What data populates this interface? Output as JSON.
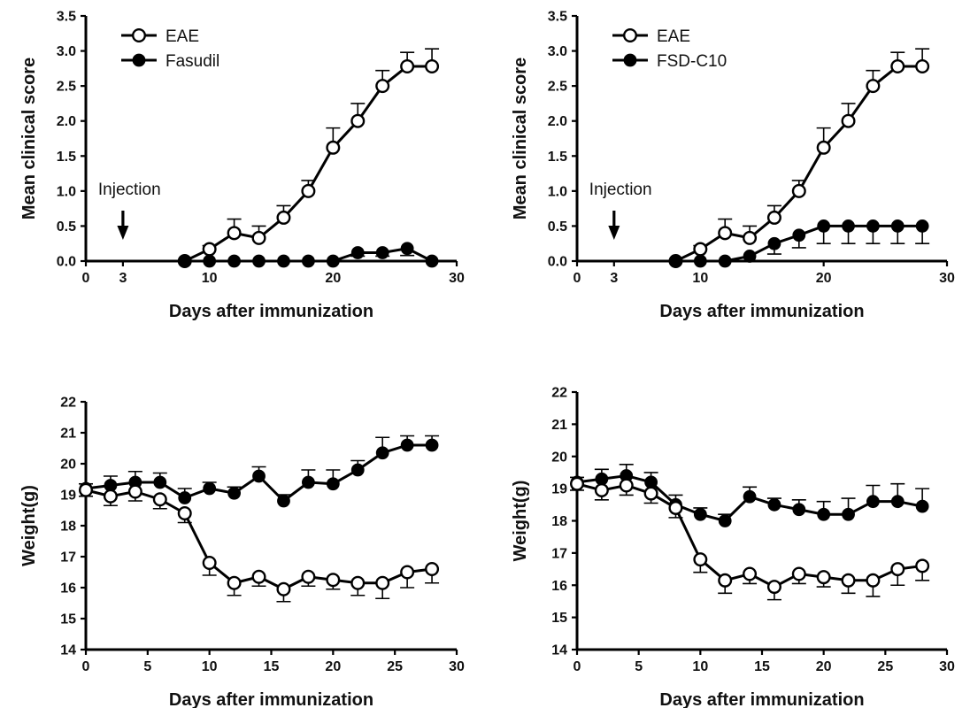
{
  "chart_data": [
    {
      "id": "top-left",
      "type": "line",
      "xlabel": "Days after immunization",
      "ylabel": "Mean clinical score",
      "xlim": [
        0,
        30
      ],
      "ylim": [
        0,
        3.5
      ],
      "xticks": [
        0,
        3,
        10,
        20,
        30
      ],
      "yticks": [
        "0.0",
        "0.5",
        "1.0",
        "1.5",
        "2.0",
        "2.5",
        "3.0",
        "3.5"
      ],
      "legend_position": "top-left",
      "annotation": {
        "text": "Injection",
        "x": 3
      },
      "series": [
        {
          "name": "EAE",
          "marker": "open-circle",
          "x": [
            8,
            10,
            12,
            14,
            16,
            18,
            20,
            22,
            24,
            26,
            28
          ],
          "values": [
            0,
            0.17,
            0.4,
            0.33,
            0.62,
            1.0,
            1.62,
            2.0,
            2.5,
            2.78,
            2.78
          ],
          "errors": [
            0,
            0.05,
            0.2,
            0.17,
            0.17,
            0.15,
            0.28,
            0.25,
            0.22,
            0.2,
            0.25
          ],
          "error_dir": "up"
        },
        {
          "name": "Fasudil",
          "marker": "filled-circle",
          "x": [
            8,
            10,
            12,
            14,
            16,
            18,
            20,
            22,
            24,
            26,
            28
          ],
          "values": [
            0,
            0,
            0,
            0,
            0,
            0,
            0,
            0.12,
            0.12,
            0.18,
            0
          ],
          "errors": [
            0,
            0,
            0,
            0,
            0,
            0,
            0,
            0.05,
            0.05,
            0.1,
            0
          ],
          "error_dir": "down"
        }
      ]
    },
    {
      "id": "top-right",
      "type": "line",
      "xlabel": "Days after immunization",
      "ylabel": "Mean clinical score",
      "xlim": [
        0,
        30
      ],
      "ylim": [
        0,
        3.5
      ],
      "xticks": [
        0,
        3,
        10,
        20,
        30
      ],
      "yticks": [
        "0.0",
        "0.5",
        "1.0",
        "1.5",
        "2.0",
        "2.5",
        "3.0",
        "3.5"
      ],
      "legend_position": "top-left",
      "annotation": {
        "text": "Injection",
        "x": 3
      },
      "series": [
        {
          "name": "EAE",
          "marker": "open-circle",
          "x": [
            8,
            10,
            12,
            14,
            16,
            18,
            20,
            22,
            24,
            26,
            28
          ],
          "values": [
            0,
            0.17,
            0.4,
            0.33,
            0.62,
            1.0,
            1.62,
            2.0,
            2.5,
            2.78,
            2.78
          ],
          "errors": [
            0,
            0.05,
            0.2,
            0.17,
            0.17,
            0.15,
            0.28,
            0.25,
            0.22,
            0.2,
            0.25
          ],
          "error_dir": "up"
        },
        {
          "name": "FSD-C10",
          "marker": "filled-circle",
          "x": [
            8,
            10,
            12,
            14,
            16,
            18,
            20,
            22,
            24,
            26,
            28
          ],
          "values": [
            0,
            0,
            0,
            0.07,
            0.25,
            0.37,
            0.5,
            0.5,
            0.5,
            0.5,
            0.5
          ],
          "errors": [
            0,
            0,
            0,
            0.07,
            0.15,
            0.18,
            0.25,
            0.25,
            0.25,
            0.25,
            0.25
          ],
          "error_dir": "down"
        }
      ]
    },
    {
      "id": "bottom-left",
      "type": "line",
      "xlabel": "Days after immunization",
      "ylabel": "Weight(g)",
      "xlim": [
        0,
        30
      ],
      "ylim": [
        14,
        22
      ],
      "xticks": [
        0,
        5,
        10,
        15,
        20,
        25,
        30
      ],
      "yticks": [
        "14",
        "15",
        "16",
        "17",
        "18",
        "19",
        "20",
        "21",
        "22"
      ],
      "series": [
        {
          "name": "",
          "marker": "filled-circle",
          "x": [
            0,
            2,
            4,
            6,
            8,
            10,
            12,
            14,
            16,
            18,
            20,
            22,
            24,
            26,
            28
          ],
          "values": [
            19.2,
            19.3,
            19.4,
            19.4,
            18.9,
            19.2,
            19.05,
            19.6,
            18.8,
            19.4,
            19.35,
            19.8,
            20.35,
            20.6,
            20.6
          ],
          "errors": [
            0.15,
            0.3,
            0.35,
            0.3,
            0.3,
            0.2,
            0.2,
            0.3,
            0.2,
            0.4,
            0.45,
            0.3,
            0.5,
            0.3,
            0.3
          ],
          "error_dir": "up"
        },
        {
          "name": "",
          "marker": "open-circle",
          "x": [
            0,
            2,
            4,
            6,
            8,
            10,
            12,
            14,
            16,
            18,
            20,
            22,
            24,
            26,
            28
          ],
          "values": [
            19.15,
            18.95,
            19.1,
            18.85,
            18.4,
            16.8,
            16.15,
            16.35,
            15.95,
            16.35,
            16.25,
            16.15,
            16.15,
            16.5,
            16.6
          ],
          "errors": [
            0.2,
            0.3,
            0.3,
            0.3,
            0.3,
            0.4,
            0.4,
            0.3,
            0.4,
            0.3,
            0.3,
            0.4,
            0.5,
            0.5,
            0.45
          ],
          "error_dir": "down"
        }
      ]
    },
    {
      "id": "bottom-right",
      "type": "line",
      "xlabel": "Days after immunization",
      "ylabel": "Weight(g)",
      "xlim": [
        0,
        30
      ],
      "ylim": [
        14,
        22
      ],
      "xticks": [
        0,
        5,
        10,
        15,
        20,
        25,
        30
      ],
      "yticks": [
        "14",
        "15",
        "16",
        "17",
        "18",
        "19",
        "20",
        "21",
        "22"
      ],
      "series": [
        {
          "name": "",
          "marker": "filled-circle",
          "x": [
            0,
            2,
            4,
            6,
            8,
            10,
            12,
            14,
            16,
            18,
            20,
            22,
            24,
            26,
            28
          ],
          "values": [
            19.2,
            19.3,
            19.4,
            19.2,
            18.5,
            18.2,
            18.0,
            18.75,
            18.5,
            18.35,
            18.2,
            18.2,
            18.6,
            18.6,
            18.45
          ],
          "errors": [
            0.15,
            0.3,
            0.35,
            0.3,
            0.3,
            0.2,
            0.2,
            0.3,
            0.2,
            0.3,
            0.4,
            0.5,
            0.5,
            0.55,
            0.55
          ],
          "error_dir": "up"
        },
        {
          "name": "",
          "marker": "open-circle",
          "x": [
            0,
            2,
            4,
            6,
            8,
            10,
            12,
            14,
            16,
            18,
            20,
            22,
            24,
            26,
            28
          ],
          "values": [
            19.15,
            18.95,
            19.1,
            18.85,
            18.4,
            16.8,
            16.15,
            16.35,
            15.95,
            16.35,
            16.25,
            16.15,
            16.15,
            16.5,
            16.6
          ],
          "errors": [
            0.2,
            0.3,
            0.3,
            0.3,
            0.3,
            0.4,
            0.4,
            0.3,
            0.4,
            0.3,
            0.3,
            0.4,
            0.5,
            0.5,
            0.45
          ],
          "error_dir": "down"
        }
      ]
    }
  ]
}
